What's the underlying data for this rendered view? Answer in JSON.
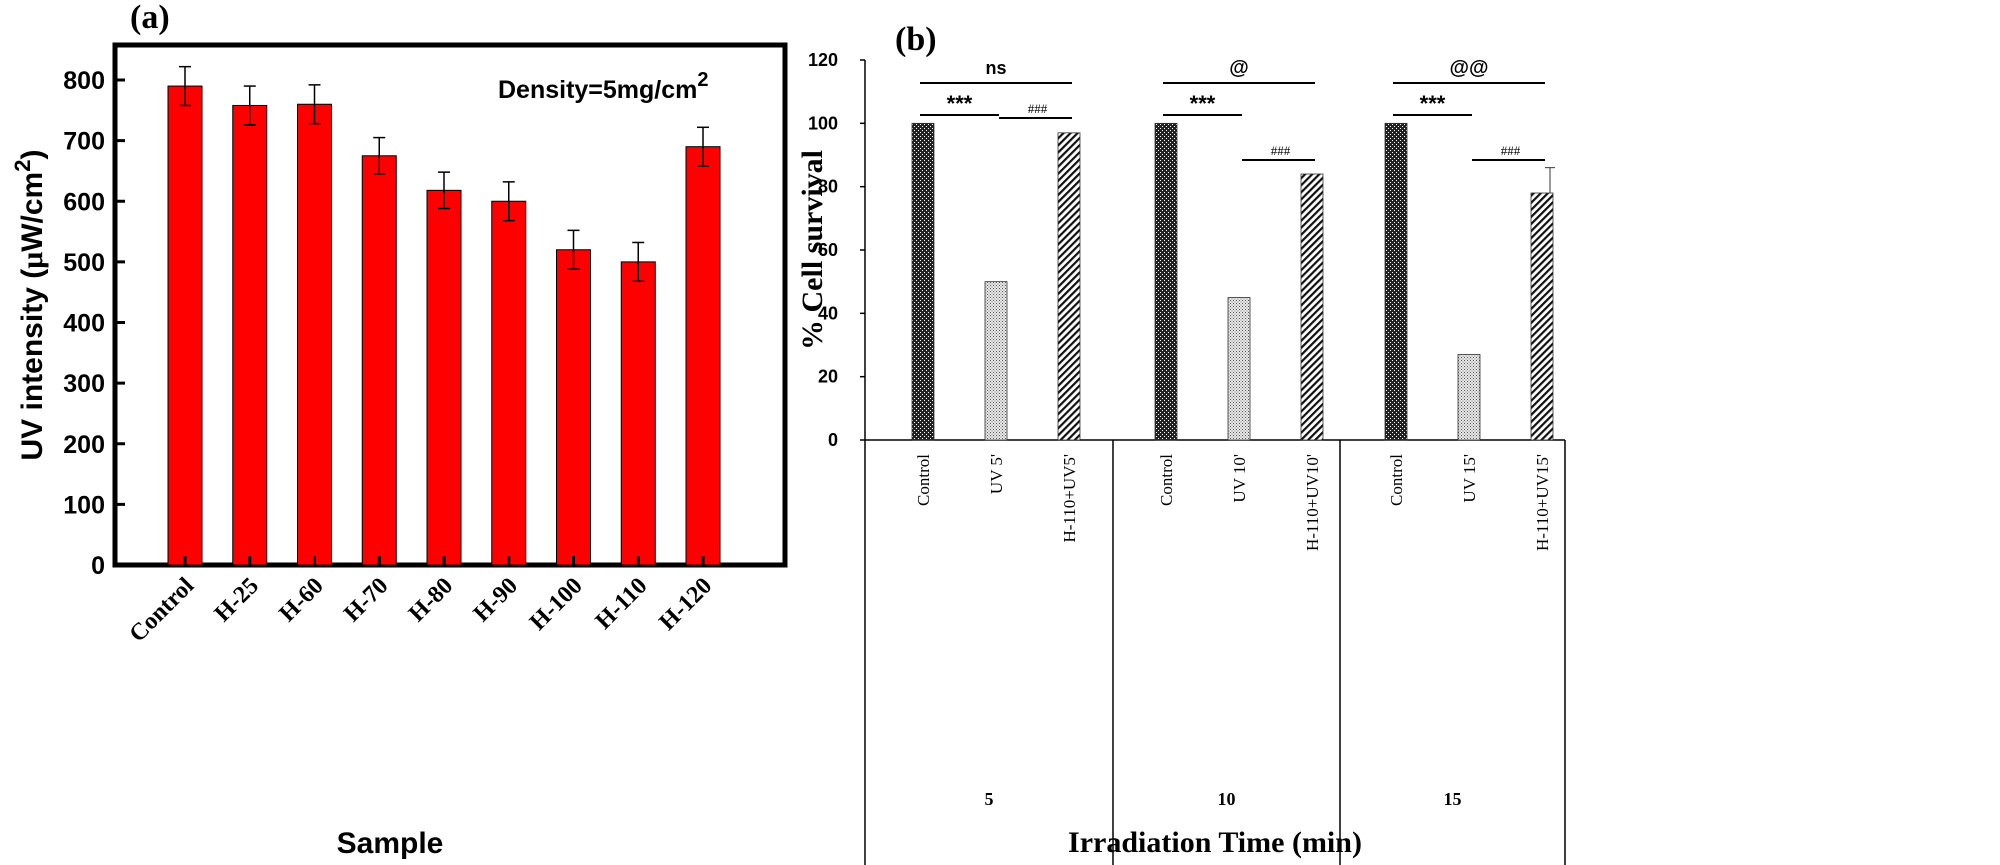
{
  "chart_data": [
    {
      "panel_label": "(a)",
      "type": "bar",
      "title": "",
      "xlabel": "Sample",
      "ylabel": "UV intensity (µW/cm²)",
      "ylabel_main": "UV intensity (",
      "ylabel_mu": "μ",
      "ylabel_unit": "W/cm",
      "ylabel_sup": "2",
      "ylabel_close": ")",
      "annotation_main": "Density=5mg/cm",
      "annotation_sup": "2",
      "ylim": [
        0,
        850
      ],
      "yticks": [
        0,
        100,
        200,
        300,
        400,
        500,
        600,
        700,
        800
      ],
      "categories": [
        "Control",
        "H-25",
        "H-60",
        "H-70",
        "H-80",
        "H-90",
        "H-100",
        "H-110",
        "H-120"
      ],
      "values": [
        790,
        758,
        760,
        675,
        618,
        600,
        520,
        500,
        690
      ],
      "errors": [
        32,
        32,
        32,
        30,
        30,
        32,
        32,
        32,
        32
      ],
      "bar_color": "#ff0000",
      "grid": false,
      "legend": "none"
    },
    {
      "panel_label": "(b)",
      "type": "bar",
      "title": "",
      "xlabel": "Irradiation Time (min)",
      "ylabel": "% Cell survival",
      "ylim": [
        0,
        120
      ],
      "yticks": [
        0,
        20,
        40,
        60,
        80,
        100,
        120
      ],
      "groups": [
        {
          "name": "5",
          "categories": [
            "Control",
            "UV 5'",
            "H-110+UV5'"
          ],
          "values": [
            100,
            50,
            97
          ],
          "errors": [
            0,
            0,
            0
          ],
          "patterns": [
            "dots-dark",
            "dots-light",
            "hatch"
          ],
          "sig_top": "ns",
          "sig_left": "***",
          "sig_right": "###"
        },
        {
          "name": "10",
          "categories": [
            "Control",
            "UV 10'",
            "H-110+UV10'"
          ],
          "values": [
            100,
            45,
            84
          ],
          "errors": [
            0,
            0,
            0
          ],
          "patterns": [
            "dots-dark",
            "dots-light",
            "hatch"
          ],
          "sig_top": "@",
          "sig_left": "***",
          "sig_right": "###"
        },
        {
          "name": "15",
          "categories": [
            "Control",
            "UV 15'",
            "H-110+UV15'"
          ],
          "values": [
            100,
            27,
            78
          ],
          "errors": [
            0,
            0,
            8
          ],
          "patterns": [
            "dots-dark",
            "dots-light",
            "hatch"
          ],
          "sig_top": "@@",
          "sig_left": "***",
          "sig_right": "###"
        }
      ],
      "grid": false,
      "legend": "none"
    }
  ]
}
